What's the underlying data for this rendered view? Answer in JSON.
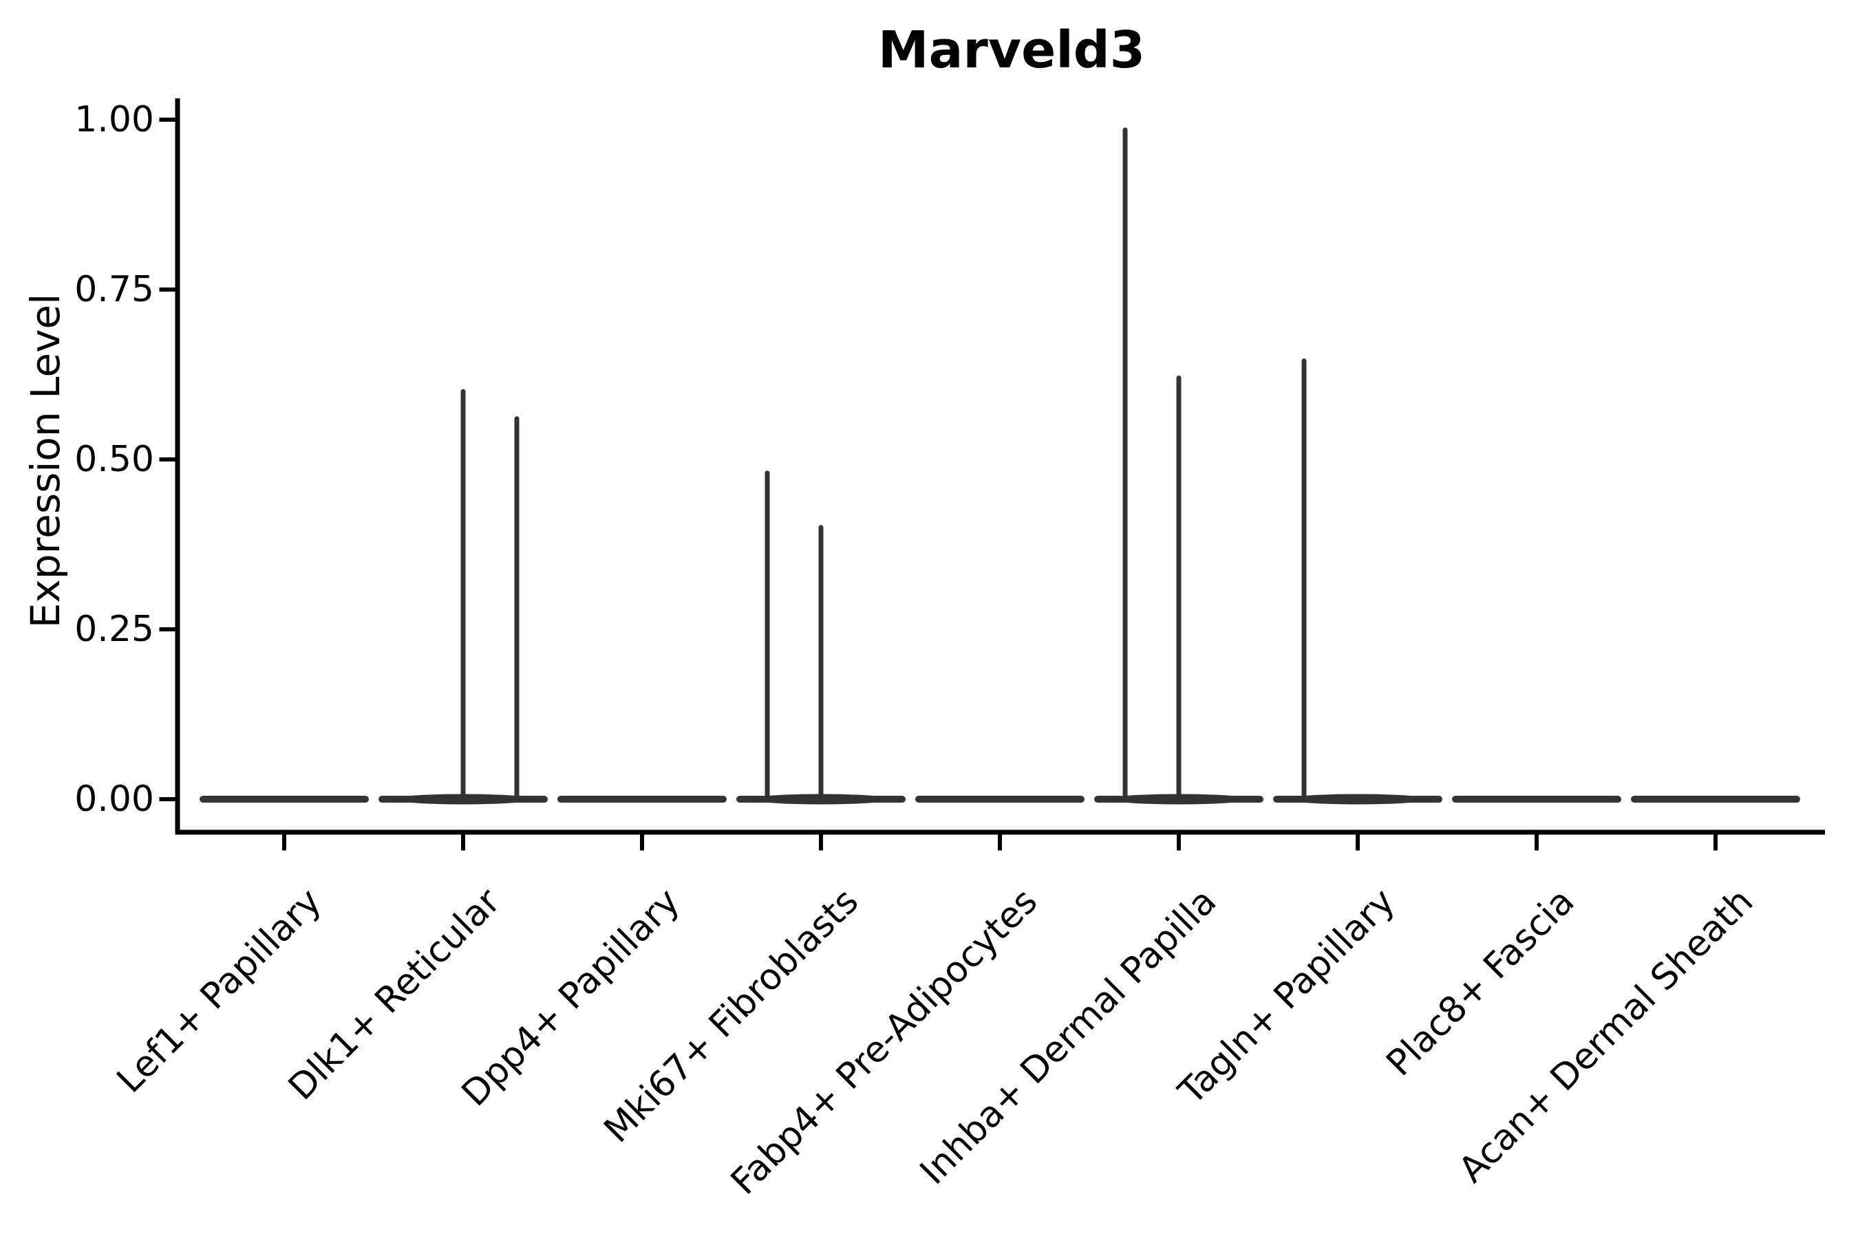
{
  "figure": {
    "title": "Marveld3",
    "ylabel": "Expression Level"
  },
  "chart_data": {
    "type": "violin",
    "title": "Marveld3",
    "xlabel": "",
    "ylabel": "Expression Level",
    "ylim": [
      0,
      1
    ],
    "ytick_labels": [
      "0.00",
      "0.25",
      "0.50",
      "0.75",
      "1.00"
    ],
    "grid": false,
    "legend": null,
    "categories": [
      "Lef1+ Papillary",
      "Dlk1+ Reticular",
      "Dpp4+ Papillary",
      "Mki67+ Fibroblasts",
      "Fabp4+ Pre-Adipocytes",
      "Inhba+ Dermal Papilla",
      "Tagln+ Papillary",
      "Plac8+ Fascia",
      "Acan+ Dermal Sheath"
    ],
    "violins": [
      {
        "category": "Lef1+ Papillary",
        "base_value": 0.0,
        "spikes": []
      },
      {
        "category": "Dlk1+ Reticular",
        "base_value": 0.0,
        "spikes": [
          {
            "offset_frac": 0.0,
            "value": 0.6
          },
          {
            "offset_frac": 0.3,
            "value": 0.56
          }
        ]
      },
      {
        "category": "Dpp4+ Papillary",
        "base_value": 0.0,
        "spikes": []
      },
      {
        "category": "Mki67+ Fibroblasts",
        "base_value": 0.0,
        "spikes": [
          {
            "offset_frac": -0.3,
            "value": 0.48
          },
          {
            "offset_frac": 0.0,
            "value": 0.4
          }
        ]
      },
      {
        "category": "Fabp4+ Pre-Adipocytes",
        "base_value": 0.0,
        "spikes": []
      },
      {
        "category": "Inhba+ Dermal Papilla",
        "base_value": 0.0,
        "spikes": [
          {
            "offset_frac": -0.3,
            "value": 0.985
          },
          {
            "offset_frac": 0.0,
            "value": 0.62
          }
        ]
      },
      {
        "category": "Tagln+ Papillary",
        "base_value": 0.0,
        "spikes": [
          {
            "offset_frac": -0.3,
            "value": 0.645
          }
        ]
      },
      {
        "category": "Plac8+ Fascia",
        "base_value": 0.0,
        "spikes": []
      },
      {
        "category": "Acan+ Dermal Sheath",
        "base_value": 0.0,
        "spikes": []
      }
    ]
  },
  "colors": {
    "violin": "#333333",
    "axis": "#000000",
    "text": "#000000",
    "background": "#ffffff"
  }
}
